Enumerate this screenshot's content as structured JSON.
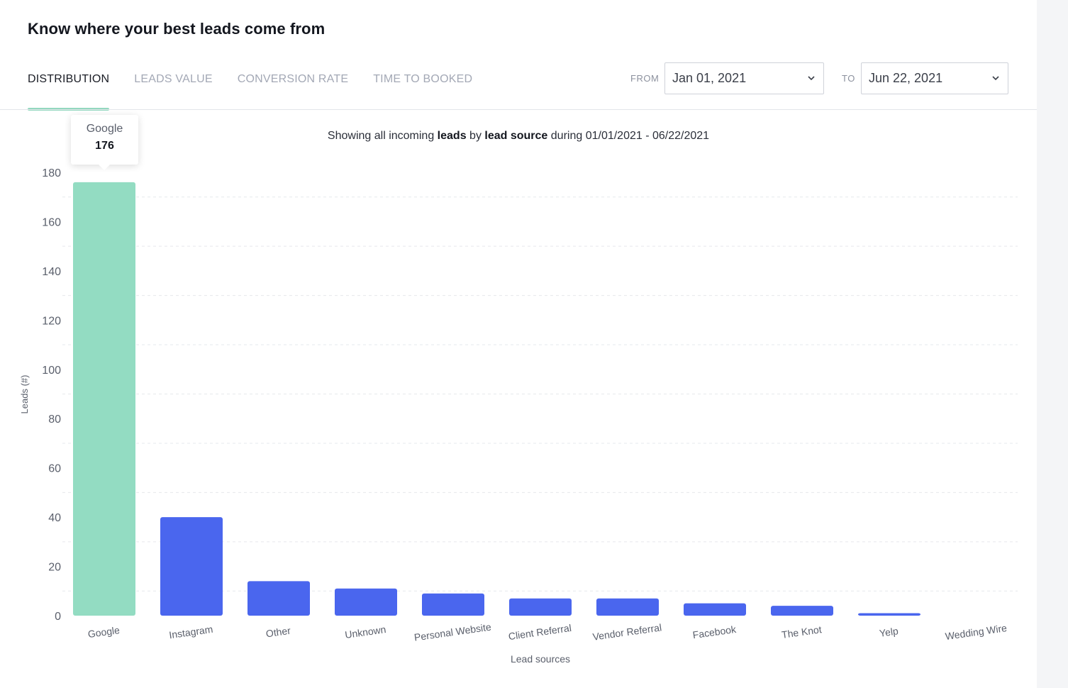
{
  "header": {
    "title": "Know where your best leads come from"
  },
  "tabs": [
    {
      "label": "DISTRIBUTION",
      "active": true
    },
    {
      "label": "LEADS VALUE",
      "active": false
    },
    {
      "label": "CONVERSION RATE",
      "active": false
    },
    {
      "label": "TIME TO BOOKED",
      "active": false
    }
  ],
  "date_range": {
    "from_label": "FROM",
    "from_value": "Jan 01, 2021",
    "to_label": "TO",
    "to_value": "Jun 22, 2021"
  },
  "subtitle": {
    "prefix": "Showing all incoming ",
    "bold1": "leads",
    "middle": " by ",
    "bold2": "lead source",
    "suffix": " during 01/01/2021 - 06/22/2021"
  },
  "tooltip": {
    "label": "Google",
    "value": "176"
  },
  "colors": {
    "highlight": "#93dcc2",
    "bar": "#4a66ee",
    "active_tab": "#93d8bf"
  },
  "chart_data": {
    "type": "bar",
    "categories": [
      "Google",
      "Instagram",
      "Other",
      "Unknown",
      "Personal Website",
      "Client Referral",
      "Vendor Referral",
      "Facebook",
      "The Knot",
      "Yelp",
      "Wedding Wire"
    ],
    "values": [
      176,
      40,
      14,
      11,
      9,
      7,
      7,
      5,
      4,
      1,
      0
    ],
    "highlighted": "Google",
    "xlabel": "Lead sources",
    "ylabel": "Leads (#)",
    "ylim": [
      0,
      180
    ],
    "yticks": [
      0,
      20,
      40,
      60,
      80,
      100,
      120,
      140,
      160,
      180
    ],
    "grid": true
  }
}
